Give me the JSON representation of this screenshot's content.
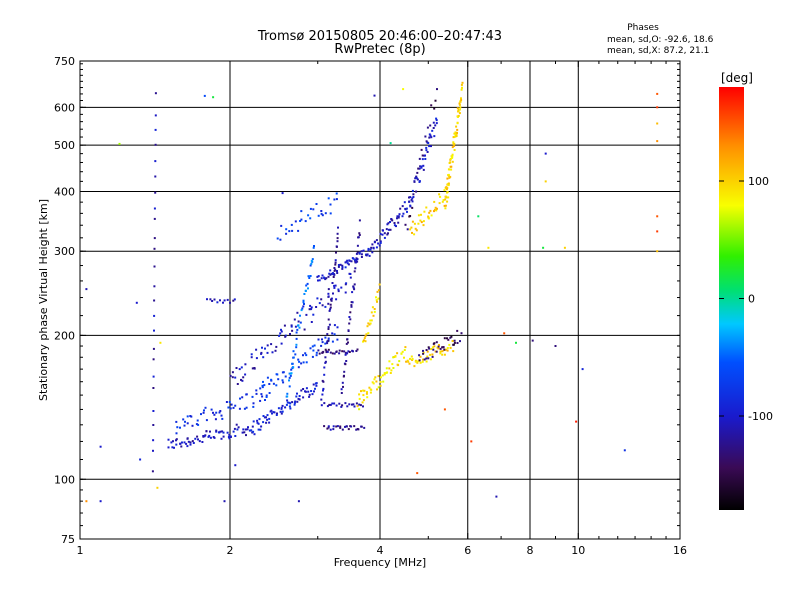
{
  "title": "Tromsø 20150805 20:46:00–20:47:43",
  "subtitle": "RwPretec (8p)",
  "phases_box": {
    "header": "Phases",
    "line1": "mean, sd,O: -92.6, 18.6",
    "line2": "mean, sd,X:  87.2, 21.1"
  },
  "colorbar": {
    "unit_label": "[deg]",
    "ticks": [
      {
        "value": 100,
        "label": "100"
      },
      {
        "value": 0,
        "label": "0"
      },
      {
        "value": -100,
        "label": "-100"
      }
    ],
    "range": [
      -180,
      180
    ]
  },
  "chart_data": {
    "type": "scatter",
    "xlabel": "Frequency [MHz]",
    "ylabel": "Stationary phase Virtual Height [km]",
    "xscale": "log",
    "yscale": "log",
    "xlim": [
      1,
      16
    ],
    "ylim": [
      75,
      750
    ],
    "x_ticks": [
      {
        "value": 1,
        "label": "1"
      },
      {
        "value": 2,
        "label": "2"
      },
      {
        "value": 4,
        "label": "4"
      },
      {
        "value": 6,
        "label": "6"
      },
      {
        "value": 8,
        "label": "8"
      },
      {
        "value": 10,
        "label": "10"
      },
      {
        "value": 16,
        "label": "16"
      }
    ],
    "y_ticks": [
      {
        "value": 75,
        "label": "75"
      },
      {
        "value": 100,
        "label": "100"
      },
      {
        "value": 200,
        "label": "200"
      },
      {
        "value": 300,
        "label": "300"
      },
      {
        "value": 400,
        "label": "400"
      },
      {
        "value": 500,
        "label": "500"
      },
      {
        "value": 600,
        "label": "600"
      },
      {
        "value": 750,
        "label": "750"
      }
    ],
    "x_gridlines": [
      2,
      4,
      6,
      8,
      10
    ],
    "y_gridlines": [
      100,
      200,
      300,
      400,
      500,
      600
    ],
    "grid": true,
    "segments": [
      {
        "f1": 1.5,
        "f2": 2.2,
        "h1": 118,
        "h2": 128,
        "n": 70,
        "phase": -105,
        "spread": 0.03
      },
      {
        "f1": 2.2,
        "f2": 3.0,
        "h1": 127,
        "h2": 158,
        "n": 70,
        "phase": -95,
        "spread": 0.03
      },
      {
        "f1": 1.55,
        "f2": 2.4,
        "h1": 128,
        "h2": 152,
        "n": 55,
        "phase": -80,
        "spread": 0.04
      },
      {
        "f1": 2.3,
        "f2": 3.3,
        "h1": 152,
        "h2": 205,
        "n": 55,
        "phase": -75,
        "spread": 0.04
      },
      {
        "f1": 2.0,
        "f2": 3.5,
        "h1": 160,
        "h2": 265,
        "n": 80,
        "phase": -105,
        "spread": 0.05
      },
      {
        "f1": 3.0,
        "f2": 3.8,
        "h1": 260,
        "h2": 300,
        "n": 55,
        "phase": -100,
        "spread": 0.02
      },
      {
        "f1": 3.8,
        "f2": 4.6,
        "h1": 300,
        "h2": 380,
        "n": 55,
        "phase": -105,
        "spread": 0.03
      },
      {
        "f1": 4.6,
        "f2": 5.2,
        "h1": 380,
        "h2": 560,
        "n": 45,
        "phase": -100,
        "spread": 0.04
      },
      {
        "f1": 4.6,
        "f2": 5.5,
        "h1": 330,
        "h2": 400,
        "n": 40,
        "phase": 100,
        "spread": 0.04
      },
      {
        "f1": 5.4,
        "f2": 5.85,
        "h1": 380,
        "h2": 650,
        "n": 75,
        "phase": 100,
        "spread": 0.04
      },
      {
        "f1": 3.6,
        "f2": 4.5,
        "h1": 145,
        "h2": 185,
        "n": 55,
        "phase": 90,
        "spread": 0.04
      },
      {
        "f1": 4.5,
        "f2": 5.6,
        "h1": 175,
        "h2": 190,
        "n": 45,
        "phase": 100,
        "spread": 0.03
      },
      {
        "f1": 3.7,
        "f2": 4.0,
        "h1": 190,
        "h2": 250,
        "n": 25,
        "phase": 95,
        "spread": 0.03
      },
      {
        "f1": 4.8,
        "f2": 5.8,
        "h1": 180,
        "h2": 200,
        "n": 35,
        "phase": -140,
        "spread": 0.03
      },
      {
        "f1": 2.6,
        "f2": 2.95,
        "h1": 150,
        "h2": 305,
        "n": 45,
        "phase": -50,
        "spread": 0.03
      },
      {
        "f1": 3.05,
        "f2": 3.3,
        "h1": 145,
        "h2": 330,
        "n": 45,
        "phase": -115,
        "spread": 0.03
      },
      {
        "f1": 3.35,
        "f2": 3.65,
        "h1": 150,
        "h2": 340,
        "n": 45,
        "phase": -120,
        "spread": 0.03
      },
      {
        "f1": 3.1,
        "f2": 3.7,
        "h1": 128,
        "h2": 128,
        "n": 25,
        "phase": -120,
        "spread": 0.01
      },
      {
        "f1": 3.1,
        "f2": 3.7,
        "h1": 143,
        "h2": 143,
        "n": 20,
        "phase": -115,
        "spread": 0.01
      },
      {
        "f1": 3.0,
        "f2": 3.6,
        "h1": 185,
        "h2": 185,
        "n": 25,
        "phase": -125,
        "spread": 0.01
      },
      {
        "f1": 1.8,
        "f2": 2.05,
        "h1": 236,
        "h2": 236,
        "n": 12,
        "phase": -110,
        "spread": 0.01
      },
      {
        "f1": 2.5,
        "f2": 3.3,
        "h1": 330,
        "h2": 380,
        "n": 30,
        "phase": -70,
        "spread": 0.05
      },
      {
        "f1": 1.4,
        "f2": 1.42,
        "h1": 105,
        "h2": 630,
        "n": 25,
        "phase": -110,
        "spread": 0.02
      },
      {
        "f1": 4.5,
        "f2": 5.2,
        "h1": 330,
        "h2": 650,
        "n": 20,
        "phase": -140,
        "spread": 0.04
      }
    ],
    "scatter_points": [
      {
        "x": 1.03,
        "y": 90,
        "phase": 130
      },
      {
        "x": 1.03,
        "y": 250,
        "phase": -110
      },
      {
        "x": 1.1,
        "y": 90,
        "phase": -100
      },
      {
        "x": 1.1,
        "y": 117,
        "phase": -100
      },
      {
        "x": 1.2,
        "y": 503,
        "phase": 60
      },
      {
        "x": 1.3,
        "y": 234,
        "phase": -100
      },
      {
        "x": 1.32,
        "y": 110,
        "phase": -90
      },
      {
        "x": 1.43,
        "y": 96,
        "phase": 100
      },
      {
        "x": 1.45,
        "y": 193,
        "phase": 90
      },
      {
        "x": 1.78,
        "y": 634,
        "phase": -60
      },
      {
        "x": 1.85,
        "y": 630,
        "phase": 20
      },
      {
        "x": 1.95,
        "y": 90,
        "phase": -110
      },
      {
        "x": 2.05,
        "y": 107,
        "phase": -100
      },
      {
        "x": 2.55,
        "y": 397,
        "phase": -100
      },
      {
        "x": 2.75,
        "y": 90,
        "phase": -110
      },
      {
        "x": 3.9,
        "y": 635,
        "phase": -110
      },
      {
        "x": 4.2,
        "y": 505,
        "phase": 0
      },
      {
        "x": 4.45,
        "y": 655,
        "phase": 80
      },
      {
        "x": 4.75,
        "y": 103,
        "phase": 150
      },
      {
        "x": 5.4,
        "y": 140,
        "phase": 150
      },
      {
        "x": 6.1,
        "y": 120,
        "phase": 160
      },
      {
        "x": 6.3,
        "y": 355,
        "phase": 10
      },
      {
        "x": 6.6,
        "y": 305,
        "phase": 90
      },
      {
        "x": 6.85,
        "y": 92,
        "phase": -110
      },
      {
        "x": 7.1,
        "y": 202,
        "phase": 150
      },
      {
        "x": 7.5,
        "y": 193,
        "phase": 20
      },
      {
        "x": 8.1,
        "y": 195,
        "phase": -130
      },
      {
        "x": 8.5,
        "y": 305,
        "phase": 20
      },
      {
        "x": 8.6,
        "y": 480,
        "phase": -100
      },
      {
        "x": 8.6,
        "y": 420,
        "phase": 100
      },
      {
        "x": 9.0,
        "y": 190,
        "phase": -130
      },
      {
        "x": 9.4,
        "y": 305,
        "phase": 100
      },
      {
        "x": 9.9,
        "y": 132,
        "phase": 170
      },
      {
        "x": 10.2,
        "y": 170,
        "phase": -90
      },
      {
        "x": 12.4,
        "y": 115,
        "phase": -80
      },
      {
        "x": 14.4,
        "y": 600,
        "phase": 160
      },
      {
        "x": 14.4,
        "y": 555,
        "phase": 110
      },
      {
        "x": 14.4,
        "y": 510,
        "phase": 130
      },
      {
        "x": 14.4,
        "y": 355,
        "phase": 150
      },
      {
        "x": 14.4,
        "y": 300,
        "phase": 110
      },
      {
        "x": 14.4,
        "y": 330,
        "phase": 160
      },
      {
        "x": 14.4,
        "y": 640,
        "phase": 150
      }
    ]
  }
}
